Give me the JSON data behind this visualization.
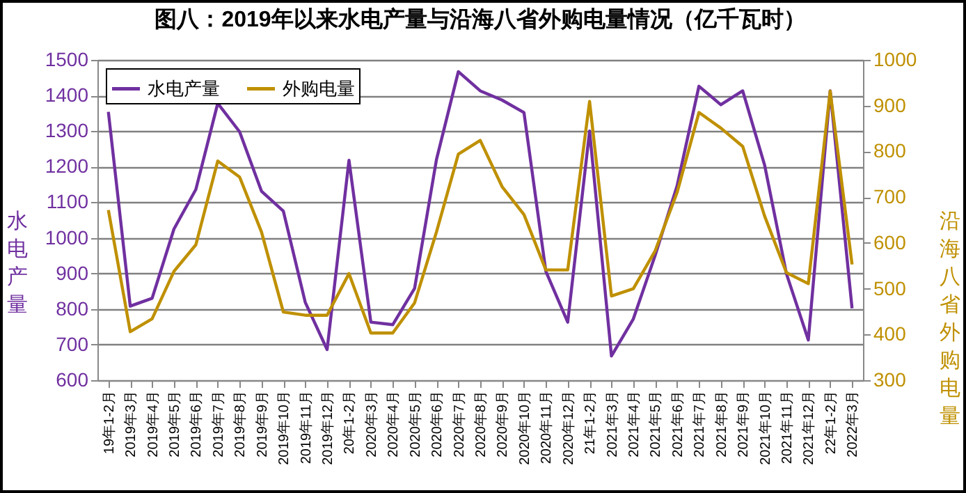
{
  "chart_data": {
    "type": "line",
    "title": "图八：2019年以来水电产量与沿海八省外购电量情况（亿千瓦时）",
    "ylabel": "水电产量",
    "y2label": "沿海八省外购电量",
    "categories": [
      "19年1-2月",
      "2019年3月",
      "2019年4月",
      "2019年5月",
      "2019年6月",
      "2019年7月",
      "2019年8月",
      "2019年9月",
      "2019年10月",
      "2019年11月",
      "2019年12月",
      "20年1-2月",
      "2020年3月",
      "2020年4月",
      "2020年5月",
      "2020年6月",
      "2020年7月",
      "2020年8月",
      "2020年9月",
      "2020年10月",
      "2020年11月",
      "2020年12月",
      "21年1-2月",
      "2021年3月",
      "2021年4月",
      "2021年5月",
      "2021年6月",
      "2021年7月",
      "2021年8月",
      "2021年9月",
      "2021年10月",
      "2021年11月",
      "2021年12月",
      "22年1-2月",
      "2022年3月"
    ],
    "series": [
      {
        "name": "水电产量",
        "color": "#7030a0",
        "values": [
          1354,
          808,
          830,
          1025,
          1136,
          1378,
          1298,
          1131,
          1075,
          819,
          686,
          1218,
          763,
          756,
          858,
          1220,
          1467,
          1413,
          1387,
          1352,
          906,
          763,
          1300,
          668,
          772,
          951,
          1146,
          1426,
          1374,
          1413,
          1205,
          899,
          713,
          1413,
          802
        ]
      },
      {
        "name": "外购电量",
        "color": "#bf9000",
        "axis": "y2",
        "values": [
          672,
          406,
          434,
          538,
          596,
          779,
          744,
          624,
          449,
          442,
          442,
          533,
          403,
          403,
          469,
          624,
          794,
          824,
          723,
          662,
          541,
          541,
          909,
          484,
          500,
          583,
          710,
          885,
          851,
          811,
          659,
          535,
          511,
          932,
          553
        ]
      }
    ],
    "ylim": [
      600,
      1500
    ],
    "yticks": [
      600,
      700,
      800,
      900,
      1000,
      1100,
      1200,
      1300,
      1400,
      1500
    ],
    "y2lim": [
      300,
      1000
    ],
    "y2ticks": [
      300,
      400,
      500,
      600,
      700,
      800,
      900,
      1000
    ],
    "grid": "y",
    "legend": "top left"
  }
}
